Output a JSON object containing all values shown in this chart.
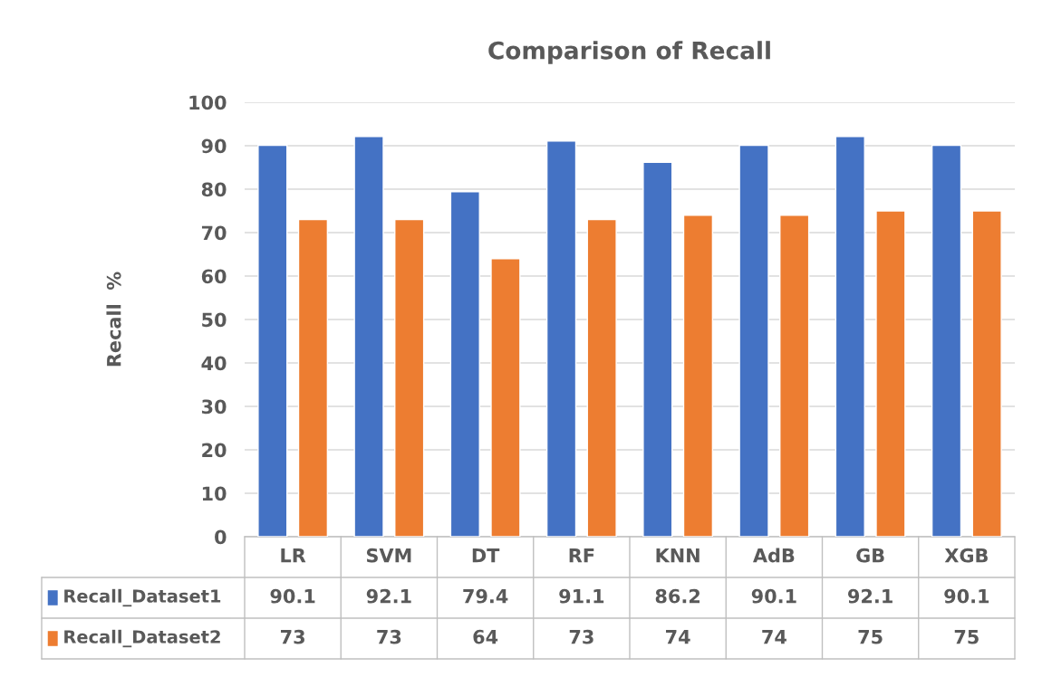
{
  "chart_data": {
    "type": "bar",
    "title": "Comparison of Recall",
    "ylabel": "Recall  %",
    "categories": [
      "LR",
      "SVM",
      "DT",
      "RF",
      "KNN",
      "AdB",
      "GB",
      "XGB"
    ],
    "series": [
      {
        "name": "Recall_Dataset1",
        "color": "#4472c4",
        "values": [
          90.1,
          92.1,
          79.4,
          91.1,
          86.2,
          90.1,
          92.1,
          90.1
        ]
      },
      {
        "name": "Recall_Dataset2",
        "color": "#ed7d31",
        "values": [
          73,
          73,
          64,
          73,
          74,
          74,
          75,
          75
        ]
      }
    ],
    "ylim": [
      0,
      100
    ],
    "yticks": [
      0,
      10,
      20,
      30,
      40,
      50,
      60,
      70,
      80,
      90,
      100
    ],
    "grid": "y",
    "data_labels": true,
    "legend": "bottom left"
  }
}
